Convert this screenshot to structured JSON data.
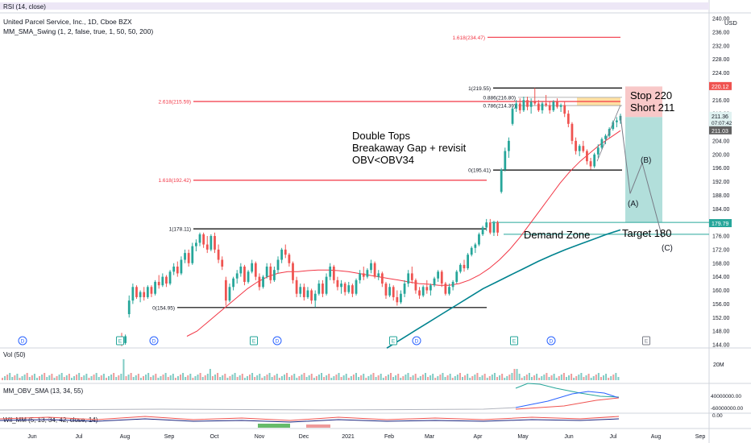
{
  "header": {
    "rsi_label": "RSI (14, close)",
    "title": "United Parcel Service, Inc., 1D, Cboe BZX",
    "indicator_label": "MM_SMA_Swing (1, 2, false, true, 1, 50, 50, 200)",
    "currency": "USD"
  },
  "panes": {
    "volume_label": "Vol (50)",
    "volume_axis": "20M",
    "obv_label": "MM_OBV_SMA (13, 34, 55)",
    "obv_axis_1": "40000000.00",
    "obv_axis_2": "-60000000.00",
    "wil_label": "Wil_MM (5, 13, 34, 42, close, 14)",
    "wil_axis": "0.00"
  },
  "colors": {
    "up": "#26a69a",
    "down": "#ef5350",
    "sma50": "#f23645",
    "sma200": "#00838f",
    "fib_red": "#f23645",
    "fib_black": "#000000",
    "profit_zone": "#b2dfdb",
    "loss_zone": "#f8c8c8",
    "event_badge": "#2962ff"
  },
  "annotations": {
    "thesis_line1": "Double Tops",
    "thesis_line2": "Breakaway Gap + revisit",
    "thesis_line3": "OBV<OBV34",
    "stop": "Stop 220",
    "short": "Short 211",
    "target": "Target 180",
    "demand_zone": "Demand Zone",
    "wave_a": "(A)",
    "wave_b": "(B)",
    "wave_c": "(C)"
  },
  "price_tags": {
    "stop_tag": "220.12",
    "last_tag": "211.36",
    "countdown_tag": "07:07:42",
    "short_tag": "211.03",
    "target_tag": "179.79"
  },
  "events": {
    "dividend": "D",
    "earnings": "E"
  },
  "chart_data": {
    "type": "candlestick",
    "symbol": "UPS",
    "timeframe": "1D",
    "x_labels": [
      "Jun",
      "Jul",
      "Aug",
      "Sep",
      "Oct",
      "Nov",
      "Dec",
      "2021",
      "Feb",
      "Mar",
      "Apr",
      "May",
      "Jun",
      "Jul",
      "Aug",
      "Sep"
    ],
    "y_ticks": [
      "240.00",
      "236.00",
      "232.00",
      "228.00",
      "224.00",
      "220.00",
      "216.00",
      "212.00",
      "208.00",
      "204.00",
      "200.00",
      "196.00",
      "192.00",
      "188.00",
      "184.00",
      "180.00",
      "176.00",
      "172.00",
      "168.00",
      "164.00",
      "160.00",
      "156.00",
      "152.00",
      "148.00",
      "144.00"
    ],
    "ylim": [
      143.5,
      240.5
    ],
    "fib_levels": [
      {
        "label": "1.618(234.47)",
        "value": 234.47,
        "color": "red"
      },
      {
        "label": "2.618(215.59)",
        "value": 215.59,
        "color": "red"
      },
      {
        "label": "1.618(192.42)",
        "value": 192.42,
        "color": "red"
      },
      {
        "label": "1(219.55)",
        "value": 219.55,
        "color": "black"
      },
      {
        "label": "0.886(216.80)",
        "value": 216.8,
        "color": "gray"
      },
      {
        "label": "0.786(214.39)",
        "value": 214.39,
        "color": "gray"
      },
      {
        "label": "0(195.41)",
        "value": 195.41,
        "color": "black"
      },
      {
        "label": "1(178.11)",
        "value": 178.11,
        "color": "black"
      },
      {
        "label": "0(154.95)",
        "value": 154.95,
        "color": "black"
      }
    ],
    "position": {
      "side": "short",
      "entry": 211,
      "stop": 220,
      "target": 180
    },
    "forecast_path": [
      {
        "label": "(A)",
        "value": 188.5
      },
      {
        "label": "(B)",
        "value": 197.5
      },
      {
        "label": "(C)",
        "value": 175.5
      }
    ],
    "candles": [
      {
        "o": 146.0,
        "h": 147.5,
        "l": 143.6,
        "c": 144.5
      },
      {
        "o": 144.5,
        "h": 147.0,
        "l": 144.0,
        "c": 146.5
      },
      {
        "o": 153.0,
        "h": 158.5,
        "l": 152.0,
        "c": 157.0
      },
      {
        "o": 157.0,
        "h": 162.0,
        "l": 156.0,
        "c": 161.0
      },
      {
        "o": 161.0,
        "h": 161.5,
        "l": 157.5,
        "c": 158.0
      },
      {
        "o": 158.0,
        "h": 160.0,
        "l": 156.5,
        "c": 159.5
      },
      {
        "o": 159.5,
        "h": 161.0,
        "l": 157.0,
        "c": 158.0
      },
      {
        "o": 158.0,
        "h": 161.5,
        "l": 157.5,
        "c": 161.0
      },
      {
        "o": 161.0,
        "h": 161.5,
        "l": 158.0,
        "c": 159.0
      },
      {
        "o": 159.0,
        "h": 163.0,
        "l": 158.5,
        "c": 162.5
      },
      {
        "o": 162.5,
        "h": 164.5,
        "l": 160.5,
        "c": 161.5
      },
      {
        "o": 161.5,
        "h": 165.0,
        "l": 161.0,
        "c": 164.0
      },
      {
        "o": 164.0,
        "h": 164.5,
        "l": 161.0,
        "c": 162.0
      },
      {
        "o": 162.0,
        "h": 166.0,
        "l": 161.5,
        "c": 165.5
      },
      {
        "o": 165.5,
        "h": 168.0,
        "l": 164.5,
        "c": 167.0
      },
      {
        "o": 167.0,
        "h": 168.5,
        "l": 164.0,
        "c": 165.0
      },
      {
        "o": 165.0,
        "h": 170.0,
        "l": 164.5,
        "c": 169.0
      },
      {
        "o": 169.0,
        "h": 172.0,
        "l": 168.0,
        "c": 171.0
      },
      {
        "o": 171.0,
        "h": 172.0,
        "l": 167.0,
        "c": 168.0
      },
      {
        "o": 168.0,
        "h": 174.0,
        "l": 167.5,
        "c": 173.0
      },
      {
        "o": 173.0,
        "h": 175.0,
        "l": 171.5,
        "c": 174.0
      },
      {
        "o": 174.0,
        "h": 177.0,
        "l": 173.0,
        "c": 176.5
      },
      {
        "o": 176.5,
        "h": 177.0,
        "l": 172.5,
        "c": 173.5
      },
      {
        "o": 173.5,
        "h": 176.0,
        "l": 171.0,
        "c": 172.0
      },
      {
        "o": 172.0,
        "h": 176.5,
        "l": 171.5,
        "c": 176.0
      },
      {
        "o": 176.0,
        "h": 177.0,
        "l": 171.0,
        "c": 172.0
      },
      {
        "o": 172.0,
        "h": 173.5,
        "l": 168.0,
        "c": 169.0
      },
      {
        "o": 169.0,
        "h": 170.0,
        "l": 166.0,
        "c": 167.0
      },
      {
        "o": 163.0,
        "h": 164.0,
        "l": 155.5,
        "c": 157.0
      },
      {
        "o": 157.0,
        "h": 162.0,
        "l": 156.5,
        "c": 161.0
      },
      {
        "o": 161.0,
        "h": 164.0,
        "l": 160.0,
        "c": 163.5
      },
      {
        "o": 163.5,
        "h": 166.0,
        "l": 162.0,
        "c": 165.0
      },
      {
        "o": 165.0,
        "h": 168.0,
        "l": 164.0,
        "c": 167.0
      },
      {
        "o": 167.0,
        "h": 167.5,
        "l": 161.5,
        "c": 162.5
      },
      {
        "o": 162.5,
        "h": 166.0,
        "l": 162.0,
        "c": 165.5
      },
      {
        "o": 165.5,
        "h": 169.0,
        "l": 165.0,
        "c": 168.0
      },
      {
        "o": 168.0,
        "h": 168.5,
        "l": 163.0,
        "c": 164.0
      },
      {
        "o": 164.0,
        "h": 165.0,
        "l": 160.0,
        "c": 161.0
      },
      {
        "o": 161.0,
        "h": 164.5,
        "l": 160.5,
        "c": 164.0
      },
      {
        "o": 164.0,
        "h": 168.0,
        "l": 163.5,
        "c": 167.0
      },
      {
        "o": 167.0,
        "h": 168.0,
        "l": 162.0,
        "c": 163.0
      },
      {
        "o": 163.0,
        "h": 167.0,
        "l": 162.5,
        "c": 166.0
      },
      {
        "o": 166.0,
        "h": 170.0,
        "l": 165.0,
        "c": 169.0
      },
      {
        "o": 169.0,
        "h": 172.5,
        "l": 168.0,
        "c": 172.0
      },
      {
        "o": 172.0,
        "h": 173.5,
        "l": 169.5,
        "c": 170.5
      },
      {
        "o": 170.5,
        "h": 171.0,
        "l": 167.0,
        "c": 168.0
      },
      {
        "o": 168.0,
        "h": 168.5,
        "l": 162.0,
        "c": 163.0
      },
      {
        "o": 163.0,
        "h": 164.0,
        "l": 158.0,
        "c": 159.0
      },
      {
        "o": 159.0,
        "h": 162.0,
        "l": 158.0,
        "c": 161.0
      },
      {
        "o": 161.0,
        "h": 162.0,
        "l": 157.0,
        "c": 158.0
      },
      {
        "o": 158.0,
        "h": 161.0,
        "l": 157.5,
        "c": 160.0
      },
      {
        "o": 160.0,
        "h": 160.5,
        "l": 156.0,
        "c": 157.0
      },
      {
        "o": 157.0,
        "h": 160.0,
        "l": 155.0,
        "c": 159.0
      },
      {
        "o": 159.0,
        "h": 163.0,
        "l": 158.5,
        "c": 162.0
      },
      {
        "o": 162.0,
        "h": 163.0,
        "l": 158.0,
        "c": 159.0
      },
      {
        "o": 159.0,
        "h": 165.0,
        "l": 158.5,
        "c": 164.0
      },
      {
        "o": 164.0,
        "h": 168.0,
        "l": 163.0,
        "c": 167.0
      },
      {
        "o": 167.0,
        "h": 167.5,
        "l": 162.0,
        "c": 163.0
      },
      {
        "o": 163.0,
        "h": 164.0,
        "l": 160.0,
        "c": 161.0
      },
      {
        "o": 161.0,
        "h": 163.0,
        "l": 159.0,
        "c": 162.0
      },
      {
        "o": 162.0,
        "h": 162.5,
        "l": 158.5,
        "c": 159.5
      },
      {
        "o": 159.5,
        "h": 162.5,
        "l": 159.0,
        "c": 161.5
      },
      {
        "o": 161.5,
        "h": 162.0,
        "l": 158.0,
        "c": 159.0
      },
      {
        "o": 159.0,
        "h": 163.5,
        "l": 158.5,
        "c": 163.0
      },
      {
        "o": 163.0,
        "h": 166.0,
        "l": 162.0,
        "c": 165.0
      },
      {
        "o": 165.0,
        "h": 167.0,
        "l": 163.0,
        "c": 164.0
      },
      {
        "o": 164.0,
        "h": 166.5,
        "l": 163.5,
        "c": 166.0
      },
      {
        "o": 166.0,
        "h": 169.0,
        "l": 165.0,
        "c": 168.0
      },
      {
        "o": 168.0,
        "h": 168.5,
        "l": 163.5,
        "c": 164.0
      },
      {
        "o": 164.0,
        "h": 166.0,
        "l": 163.0,
        "c": 165.0
      },
      {
        "o": 165.0,
        "h": 165.5,
        "l": 161.0,
        "c": 162.0
      },
      {
        "o": 162.0,
        "h": 162.5,
        "l": 157.5,
        "c": 158.5
      },
      {
        "o": 158.5,
        "h": 162.0,
        "l": 158.0,
        "c": 161.0
      },
      {
        "o": 161.0,
        "h": 161.5,
        "l": 157.0,
        "c": 158.0
      },
      {
        "o": 158.0,
        "h": 160.0,
        "l": 155.5,
        "c": 156.5
      },
      {
        "o": 156.5,
        "h": 160.0,
        "l": 156.0,
        "c": 159.0
      },
      {
        "o": 159.0,
        "h": 163.0,
        "l": 158.0,
        "c": 162.0
      },
      {
        "o": 162.0,
        "h": 166.0,
        "l": 161.0,
        "c": 165.0
      },
      {
        "o": 165.0,
        "h": 167.0,
        "l": 162.0,
        "c": 163.0
      },
      {
        "o": 163.0,
        "h": 163.5,
        "l": 159.0,
        "c": 160.0
      },
      {
        "o": 160.0,
        "h": 161.0,
        "l": 157.5,
        "c": 158.5
      },
      {
        "o": 158.5,
        "h": 161.5,
        "l": 158.0,
        "c": 161.0
      },
      {
        "o": 161.0,
        "h": 163.0,
        "l": 159.0,
        "c": 160.0
      },
      {
        "o": 160.0,
        "h": 162.0,
        "l": 158.5,
        "c": 161.5
      },
      {
        "o": 161.5,
        "h": 164.0,
        "l": 161.0,
        "c": 163.5
      },
      {
        "o": 163.5,
        "h": 166.0,
        "l": 162.5,
        "c": 165.5
      },
      {
        "o": 165.5,
        "h": 166.0,
        "l": 161.0,
        "c": 162.0
      },
      {
        "o": 162.0,
        "h": 162.5,
        "l": 158.5,
        "c": 159.0
      },
      {
        "o": 159.0,
        "h": 162.0,
        "l": 158.5,
        "c": 161.0
      },
      {
        "o": 161.0,
        "h": 163.0,
        "l": 160.0,
        "c": 162.5
      },
      {
        "o": 162.5,
        "h": 166.0,
        "l": 162.0,
        "c": 165.5
      },
      {
        "o": 165.5,
        "h": 168.0,
        "l": 165.0,
        "c": 167.5
      },
      {
        "o": 167.5,
        "h": 169.0,
        "l": 165.5,
        "c": 166.5
      },
      {
        "o": 166.5,
        "h": 171.0,
        "l": 166.0,
        "c": 170.5
      },
      {
        "o": 170.5,
        "h": 173.0,
        "l": 170.0,
        "c": 172.5
      },
      {
        "o": 172.5,
        "h": 174.0,
        "l": 171.0,
        "c": 173.5
      },
      {
        "o": 173.5,
        "h": 177.0,
        "l": 173.0,
        "c": 176.5
      },
      {
        "o": 176.5,
        "h": 179.0,
        "l": 176.0,
        "c": 178.5
      },
      {
        "o": 178.5,
        "h": 181.0,
        "l": 177.5,
        "c": 180.0
      },
      {
        "o": 180.0,
        "h": 181.0,
        "l": 176.5,
        "c": 177.0
      },
      {
        "o": 177.0,
        "h": 180.5,
        "l": 176.0,
        "c": 180.0
      },
      {
        "o": 180.0,
        "h": 180.5,
        "l": 176.0,
        "c": 177.0
      },
      {
        "o": 189.0,
        "h": 196.0,
        "l": 188.5,
        "c": 195.5
      },
      {
        "o": 195.5,
        "h": 202.0,
        "l": 195.0,
        "c": 201.0
      },
      {
        "o": 201.0,
        "h": 205.0,
        "l": 199.0,
        "c": 204.0
      },
      {
        "o": 209.0,
        "h": 214.0,
        "l": 208.5,
        "c": 213.5
      },
      {
        "o": 213.5,
        "h": 216.0,
        "l": 212.5,
        "c": 215.0
      },
      {
        "o": 215.0,
        "h": 216.5,
        "l": 212.0,
        "c": 213.0
      },
      {
        "o": 213.0,
        "h": 217.0,
        "l": 212.5,
        "c": 216.0
      },
      {
        "o": 216.0,
        "h": 217.0,
        "l": 213.0,
        "c": 214.0
      },
      {
        "o": 214.0,
        "h": 216.5,
        "l": 212.0,
        "c": 215.5
      },
      {
        "o": 215.5,
        "h": 219.55,
        "l": 214.5,
        "c": 215.0
      },
      {
        "o": 215.0,
        "h": 216.0,
        "l": 212.5,
        "c": 213.0
      },
      {
        "o": 213.0,
        "h": 215.5,
        "l": 212.0,
        "c": 215.0
      },
      {
        "o": 215.0,
        "h": 217.5,
        "l": 214.0,
        "c": 214.5
      },
      {
        "o": 214.5,
        "h": 215.5,
        "l": 212.0,
        "c": 213.0
      },
      {
        "o": 213.0,
        "h": 216.0,
        "l": 212.5,
        "c": 215.5
      },
      {
        "o": 215.5,
        "h": 216.5,
        "l": 213.5,
        "c": 214.0
      },
      {
        "o": 214.0,
        "h": 215.0,
        "l": 212.5,
        "c": 214.5
      },
      {
        "o": 214.5,
        "h": 215.5,
        "l": 211.0,
        "c": 212.0
      },
      {
        "o": 212.0,
        "h": 213.0,
        "l": 208.0,
        "c": 209.0
      },
      {
        "o": 209.0,
        "h": 209.5,
        "l": 203.0,
        "c": 204.0
      },
      {
        "o": 204.0,
        "h": 205.0,
        "l": 200.0,
        "c": 201.0
      },
      {
        "o": 201.0,
        "h": 203.0,
        "l": 199.5,
        "c": 202.5
      },
      {
        "o": 202.5,
        "h": 204.0,
        "l": 200.5,
        "c": 201.0
      },
      {
        "o": 201.0,
        "h": 201.5,
        "l": 197.0,
        "c": 198.0
      },
      {
        "o": 198.0,
        "h": 199.0,
        "l": 195.6,
        "c": 196.5
      },
      {
        "o": 196.5,
        "h": 200.5,
        "l": 196.0,
        "c": 200.0
      },
      {
        "o": 200.0,
        "h": 203.0,
        "l": 199.0,
        "c": 202.0
      },
      {
        "o": 202.0,
        "h": 205.0,
        "l": 201.5,
        "c": 204.5
      },
      {
        "o": 204.5,
        "h": 206.0,
        "l": 203.0,
        "c": 205.5
      },
      {
        "o": 205.5,
        "h": 208.0,
        "l": 205.0,
        "c": 207.5
      },
      {
        "o": 207.5,
        "h": 210.0,
        "l": 207.0,
        "c": 209.5
      },
      {
        "o": 209.5,
        "h": 211.0,
        "l": 208.0,
        "c": 210.0
      },
      {
        "o": 210.0,
        "h": 212.0,
        "l": 209.0,
        "c": 211.36
      }
    ],
    "sma50": [
      146.5,
      148.0,
      150.5,
      153.0,
      155.5,
      158.0,
      160.5,
      162.5,
      164.0,
      165.0,
      165.5,
      165.5,
      165.8,
      166.0,
      166.0,
      165.8,
      165.5,
      165.0,
      164.5,
      164.0,
      163.5,
      163.0,
      162.5,
      162.0,
      161.8,
      161.5,
      161.5,
      162.0,
      163.0,
      164.5,
      166.5,
      169.0,
      172.0,
      175.5,
      179.5,
      183.5,
      187.5,
      191.5,
      195.0,
      198.0,
      200.5,
      203.0,
      205.0,
      207.0
    ],
    "sma200": [
      143.0,
      145.5,
      148.0,
      150.5,
      153.0,
      155.5,
      158.0,
      160.5,
      162.5,
      164.5,
      166.5,
      168.5,
      170.3,
      172.0,
      173.5,
      175.0,
      176.5,
      177.8
    ]
  }
}
